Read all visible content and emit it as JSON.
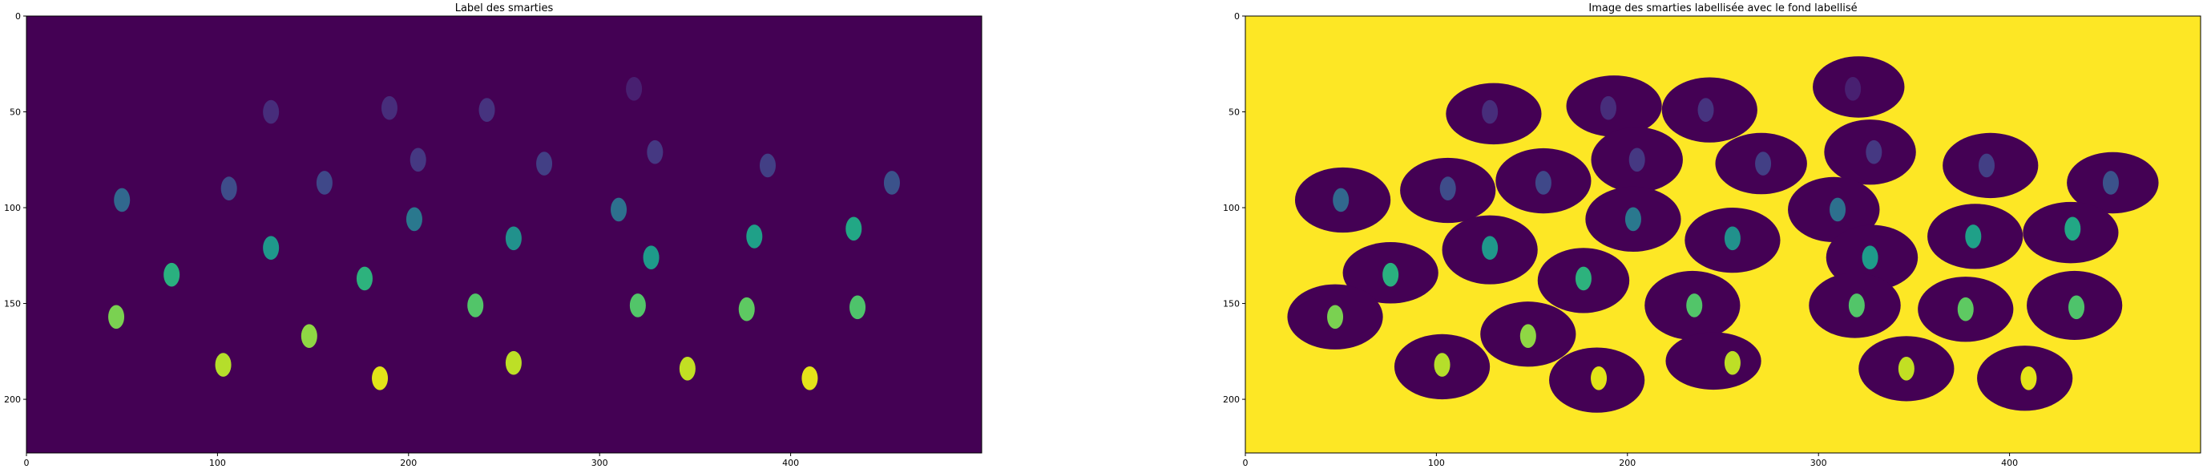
{
  "chart_data": [
    {
      "type": "heatmap",
      "title": "Label des smarties",
      "xlim": [
        0,
        500
      ],
      "ylim": [
        228,
        0
      ],
      "xticks": [
        0,
        100,
        200,
        300,
        400
      ],
      "yticks": [
        0,
        50,
        100,
        150,
        200
      ],
      "colormap": "viridis",
      "background": "#440154",
      "blobs": [
        {
          "x": 128,
          "y": 50,
          "color": "#472d7b"
        },
        {
          "x": 190,
          "y": 48,
          "color": "#472d7b"
        },
        {
          "x": 241,
          "y": 49,
          "color": "#46337f"
        },
        {
          "x": 318,
          "y": 38,
          "color": "#482071"
        },
        {
          "x": 50,
          "y": 96,
          "color": "#31688e"
        },
        {
          "x": 106,
          "y": 90,
          "color": "#3e4c8a"
        },
        {
          "x": 156,
          "y": 87,
          "color": "#3f4889"
        },
        {
          "x": 205,
          "y": 75,
          "color": "#453882"
        },
        {
          "x": 271,
          "y": 77,
          "color": "#423f85"
        },
        {
          "x": 329,
          "y": 71,
          "color": "#453882"
        },
        {
          "x": 388,
          "y": 78,
          "color": "#423f85"
        },
        {
          "x": 453,
          "y": 87,
          "color": "#3b528b"
        },
        {
          "x": 128,
          "y": 121,
          "color": "#1f988b"
        },
        {
          "x": 203,
          "y": 106,
          "color": "#2a788e"
        },
        {
          "x": 255,
          "y": 116,
          "color": "#21918c"
        },
        {
          "x": 310,
          "y": 101,
          "color": "#2d708e"
        },
        {
          "x": 327,
          "y": 126,
          "color": "#1e9b8a"
        },
        {
          "x": 381,
          "y": 115,
          "color": "#1fa088"
        },
        {
          "x": 433,
          "y": 111,
          "color": "#22a785"
        },
        {
          "x": 76,
          "y": 135,
          "color": "#2ab07f"
        },
        {
          "x": 177,
          "y": 137,
          "color": "#2db27d"
        },
        {
          "x": 47,
          "y": 157,
          "color": "#7ad151"
        },
        {
          "x": 235,
          "y": 151,
          "color": "#52c569"
        },
        {
          "x": 320,
          "y": 151,
          "color": "#52c569"
        },
        {
          "x": 377,
          "y": 153,
          "color": "#5ec962"
        },
        {
          "x": 435,
          "y": 152,
          "color": "#4ec36b"
        },
        {
          "x": 148,
          "y": 167,
          "color": "#8fd744"
        },
        {
          "x": 103,
          "y": 182,
          "color": "#b5de2b"
        },
        {
          "x": 255,
          "y": 181,
          "color": "#bddf26"
        },
        {
          "x": 346,
          "y": 184,
          "color": "#c2df23"
        },
        {
          "x": 185,
          "y": 189,
          "color": "#e2e418"
        },
        {
          "x": 410,
          "y": 189,
          "color": "#e5e419"
        }
      ]
    },
    {
      "type": "heatmap",
      "title": "Image des smarties labellisée avec le fond labellisé",
      "xlim": [
        0,
        500
      ],
      "ylim": [
        228,
        0
      ],
      "xticks": [
        0,
        100,
        200,
        300,
        400
      ],
      "yticks": [
        0,
        50,
        100,
        150,
        200
      ],
      "colormap": "viridis",
      "background": "#fde725",
      "disc_color": "#440154",
      "discs": [
        {
          "x": 130,
          "y": 51,
          "rx": 25,
          "ry": 16
        },
        {
          "x": 193,
          "y": 47,
          "rx": 25,
          "ry": 16
        },
        {
          "x": 243,
          "y": 49,
          "rx": 25,
          "ry": 17
        },
        {
          "x": 321,
          "y": 37,
          "rx": 24,
          "ry": 16
        },
        {
          "x": 51,
          "y": 96,
          "rx": 25,
          "ry": 17
        },
        {
          "x": 106,
          "y": 91,
          "rx": 25,
          "ry": 17
        },
        {
          "x": 156,
          "y": 86,
          "rx": 25,
          "ry": 17
        },
        {
          "x": 205,
          "y": 75,
          "rx": 24,
          "ry": 17
        },
        {
          "x": 270,
          "y": 77,
          "rx": 24,
          "ry": 16
        },
        {
          "x": 327,
          "y": 71,
          "rx": 24,
          "ry": 17
        },
        {
          "x": 390,
          "y": 78,
          "rx": 25,
          "ry": 17
        },
        {
          "x": 454,
          "y": 87,
          "rx": 24,
          "ry": 16
        },
        {
          "x": 128,
          "y": 122,
          "rx": 25,
          "ry": 18
        },
        {
          "x": 203,
          "y": 106,
          "rx": 25,
          "ry": 17
        },
        {
          "x": 255,
          "y": 117,
          "rx": 25,
          "ry": 17
        },
        {
          "x": 308,
          "y": 101,
          "rx": 24,
          "ry": 17
        },
        {
          "x": 328,
          "y": 126,
          "rx": 24,
          "ry": 17
        },
        {
          "x": 382,
          "y": 115,
          "rx": 25,
          "ry": 17
        },
        {
          "x": 432,
          "y": 113,
          "rx": 25,
          "ry": 16
        },
        {
          "x": 76,
          "y": 134,
          "rx": 25,
          "ry": 16
        },
        {
          "x": 177,
          "y": 138,
          "rx": 24,
          "ry": 17
        },
        {
          "x": 47,
          "y": 157,
          "rx": 25,
          "ry": 17
        },
        {
          "x": 234,
          "y": 151,
          "rx": 25,
          "ry": 18
        },
        {
          "x": 319,
          "y": 151,
          "rx": 24,
          "ry": 17
        },
        {
          "x": 377,
          "y": 153,
          "rx": 25,
          "ry": 17
        },
        {
          "x": 434,
          "y": 151,
          "rx": 25,
          "ry": 18
        },
        {
          "x": 148,
          "y": 166,
          "rx": 25,
          "ry": 17
        },
        {
          "x": 103,
          "y": 183,
          "rx": 25,
          "ry": 17
        },
        {
          "x": 245,
          "y": 180,
          "rx": 25,
          "ry": 15
        },
        {
          "x": 346,
          "y": 184,
          "rx": 25,
          "ry": 17
        },
        {
          "x": 184,
          "y": 190,
          "rx": 25,
          "ry": 17
        },
        {
          "x": 408,
          "y": 189,
          "rx": 25,
          "ry": 17
        }
      ]
    }
  ]
}
